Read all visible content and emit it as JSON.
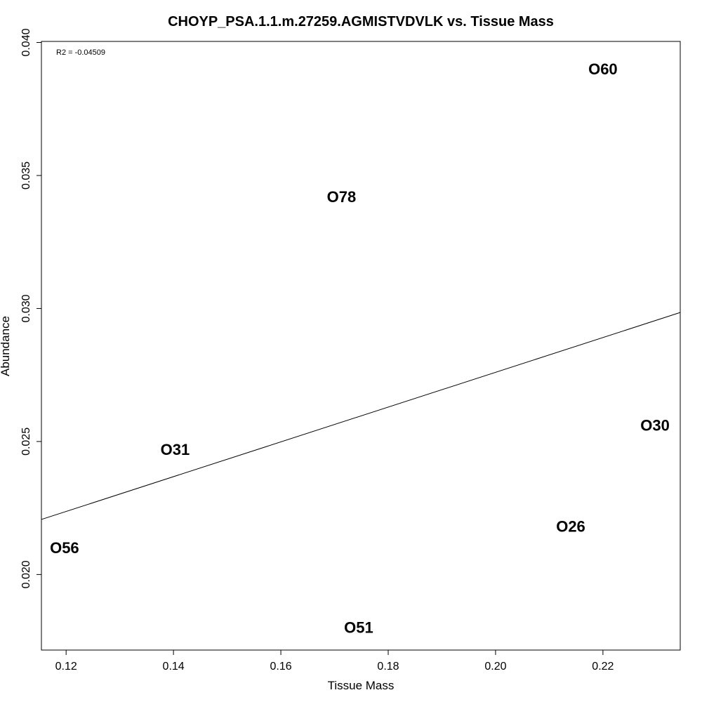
{
  "chart_data": {
    "type": "scatter",
    "title": "CHOYP_PSA.1.1.m.27259.AGMISTVDVLK vs. Tissue Mass",
    "xlabel": "Tissue Mass",
    "ylabel": "Abundance",
    "annotation": "R2 = -0.04509",
    "xlim": [
      0.1154,
      0.2344
    ],
    "ylim": [
      0.01716,
      0.04004
    ],
    "x_ticks": [
      0.12,
      0.14,
      0.16,
      0.18,
      0.2,
      0.22
    ],
    "x_tick_labels": [
      "0.12",
      "0.14",
      "0.16",
      "0.18",
      "0.20",
      "0.22"
    ],
    "y_ticks": [
      0.02,
      0.025,
      0.03,
      0.035,
      0.04
    ],
    "y_tick_labels": [
      "0.020",
      "0.025",
      "0.030",
      "0.035",
      "0.040"
    ],
    "points": [
      {
        "label": "O60",
        "x": 0.22,
        "y": 0.039
      },
      {
        "label": "O78",
        "x": 0.1713,
        "y": 0.0342
      },
      {
        "label": "O30",
        "x": 0.2297,
        "y": 0.0256
      },
      {
        "label": "O31",
        "x": 0.1403,
        "y": 0.0247
      },
      {
        "label": "O26",
        "x": 0.214,
        "y": 0.0218
      },
      {
        "label": "O56",
        "x": 0.1197,
        "y": 0.021
      },
      {
        "label": "O51",
        "x": 0.1745,
        "y": 0.018
      }
    ],
    "fit_line": {
      "x": [
        0.1154,
        0.2344
      ],
      "y": [
        0.02207,
        0.02985
      ]
    },
    "grid": false,
    "legend": "none"
  }
}
